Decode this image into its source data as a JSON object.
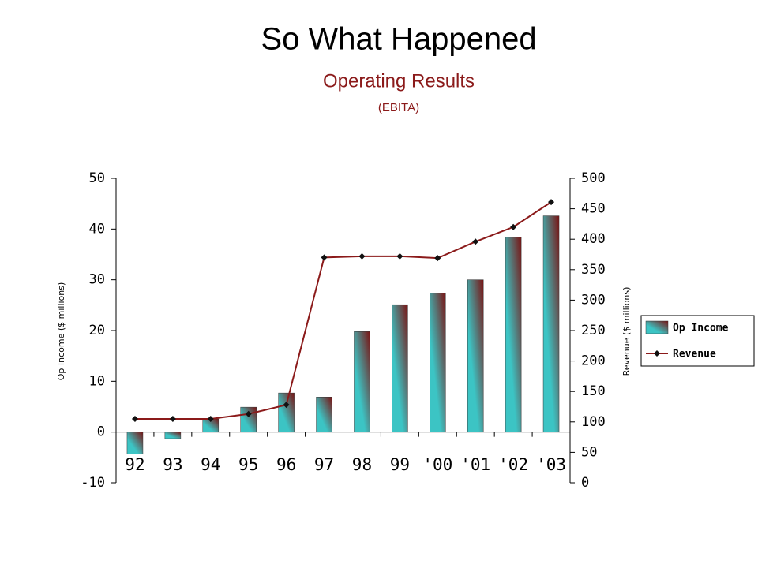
{
  "chart_data": {
    "type": "bar_line",
    "title": "So What Happened",
    "subtitle": "Operating Results",
    "note": "(EBITA)",
    "y_label": "Op Income ($ millions)",
    "y2_label": "Revenue ($ millions)",
    "categories": [
      "92",
      "93",
      "94",
      "95",
      "96",
      "97",
      "98",
      "99",
      "'00",
      "'01",
      "'02",
      "'03"
    ],
    "series": [
      {
        "name": "Op Income",
        "type": "bar",
        "color": "#3cc4c4",
        "values": [
          -4.3,
          -1.3,
          2.6,
          4.9,
          7.7,
          6.9,
          19.8,
          25.1,
          27.4,
          30.0,
          38.4,
          42.6
        ]
      },
      {
        "name": "Revenue",
        "type": "line",
        "axis": "y2",
        "color": "#8b1a1a",
        "values": [
          105,
          105,
          105,
          113,
          128,
          370,
          372,
          372,
          369,
          396,
          420,
          461
        ]
      }
    ],
    "ylim": [
      -10,
      50
    ],
    "yticks": [
      -10,
      0,
      10,
      20,
      30,
      40,
      50
    ],
    "y2lim": [
      0,
      500
    ],
    "y2ticks": [
      0,
      50,
      100,
      150,
      200,
      250,
      300,
      350,
      400,
      450,
      500
    ],
    "legend": "right"
  }
}
